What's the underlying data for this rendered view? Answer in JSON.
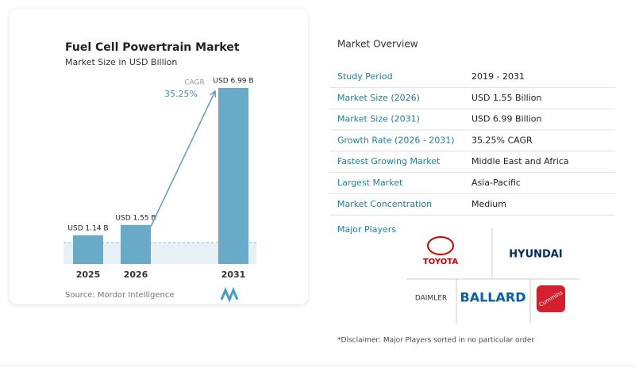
{
  "chart_data": {
    "type": "bar",
    "title": "Fuel Cell Powertrain Market",
    "subtitle": "Market Size in USD Billion",
    "categories": [
      "2025",
      "2026",
      "2031"
    ],
    "values": [
      1.14,
      1.55,
      6.99
    ],
    "value_labels": [
      "USD 1.14 B",
      "USD 1.55 B",
      "USD 6.99 B"
    ],
    "color": "#6aaac9",
    "annotation": {
      "label": "CAGR",
      "value": "35.25%"
    },
    "source": "Source: Mordor Intelligence"
  },
  "overview": {
    "title": "Market Overview",
    "rows": [
      [
        "Study Period",
        "2019 - 2031"
      ],
      [
        "Market Size (2026)",
        "USD 1.55 Billion"
      ],
      [
        "Market Size (2031)",
        "USD 6.99 Billion"
      ],
      [
        "Growth Rate (2026 - 2031)",
        "35.25% CAGR"
      ],
      [
        "Fastest Growing Market",
        "Middle East and Africa"
      ],
      [
        "Largest Market",
        "Asia-Pacific"
      ],
      [
        "Market Concentration",
        "Medium"
      ]
    ],
    "players_title": "Major Players",
    "players": [
      "TOYOTA",
      "HYUNDAI",
      "DAIMLER",
      "BALLARD",
      "Cummins"
    ],
    "disclaimer": "*Disclaimer: Major Players sorted in no particular order"
  }
}
